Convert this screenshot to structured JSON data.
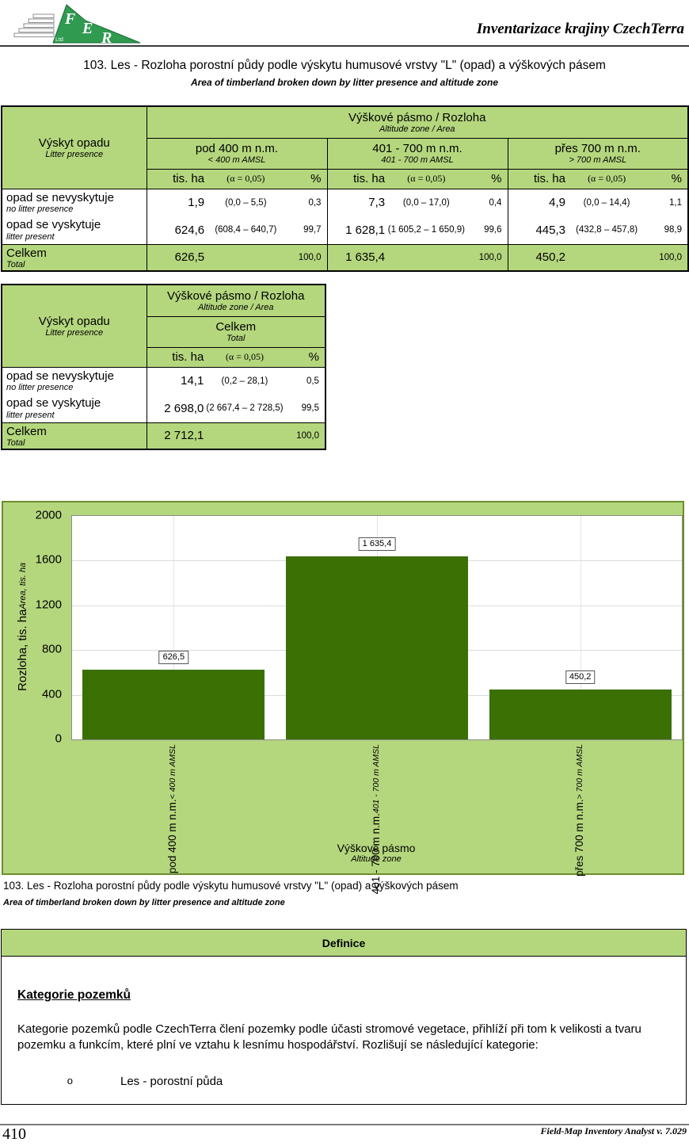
{
  "colors": {
    "green": "#b4d77e",
    "chart_border": "#6d8d2e"
  },
  "header": {
    "brand": "Inventarizace krajiny CzechTerra",
    "logo_alt": "IFER"
  },
  "title": {
    "cs": "103. Les - Rozloha porostní půdy podle výskytu humusové vrstvy \"L\" (opad) a výškových pásem",
    "en": "Area of timberland broken down by litter presence and altitude zone"
  },
  "table1": {
    "row_header": {
      "cs": "Výskyt opadu",
      "en": "Litter presence"
    },
    "group_header": {
      "cs": "Výškové pásmo / Rozloha",
      "en": "Altitude zone / Area"
    },
    "columns": [
      {
        "cs": "pod 400 m n.m.",
        "en": "< 400 m AMSL"
      },
      {
        "cs": "401 - 700 m n.m.",
        "en": "401 - 700 m AMSL"
      },
      {
        "cs": "přes 700 m n.m.",
        "en": "> 700 m AMSL"
      }
    ],
    "units": {
      "area": "tis. ha",
      "alpha": "(α = 0,05)",
      "pct": "%"
    },
    "rows": [
      {
        "label": {
          "cs": "opad se nevyskytuje",
          "en": "no litter presence"
        },
        "cells": [
          {
            "v": "1,9",
            "ci": "(0,0  –  5,5)",
            "pct": "0,3"
          },
          {
            "v": "7,3",
            "ci": "(0,0  –  17,0)",
            "pct": "0,4"
          },
          {
            "v": "4,9",
            "ci": "(0,0  –  14,4)",
            "pct": "1,1"
          }
        ]
      },
      {
        "label": {
          "cs": "opad se vyskytuje",
          "en": "litter present"
        },
        "cells": [
          {
            "v": "624,6",
            "ci": "(608,4 – 640,7)",
            "pct": "99,7"
          },
          {
            "v": "1 628,1",
            "ci": "(1 605,2 – 1 650,9)",
            "pct": "99,6"
          },
          {
            "v": "445,3",
            "ci": "(432,8 – 457,8)",
            "pct": "98,9"
          }
        ]
      }
    ],
    "total": {
      "label": {
        "cs": "Celkem",
        "en": "Total"
      },
      "cells": [
        {
          "v": "626,5",
          "pct": "100,0"
        },
        {
          "v": "1 635,4",
          "pct": "100,0"
        },
        {
          "v": "450,2",
          "pct": "100,0"
        }
      ]
    }
  },
  "table2": {
    "row_header": {
      "cs": "Výskyt opadu",
      "en": "Litter presence"
    },
    "group_header": {
      "cs": "Výškové pásmo / Rozloha",
      "en": "Altitude zone / Area"
    },
    "columns": [
      {
        "cs": "Celkem",
        "en": "Total"
      }
    ],
    "units": {
      "area": "tis. ha",
      "alpha": "(α = 0,05)",
      "pct": "%"
    },
    "rows": [
      {
        "label": {
          "cs": "opad se nevyskytuje",
          "en": "no litter presence"
        },
        "cells": [
          {
            "v": "14,1",
            "ci": "(0,2  –  28,1)",
            "pct": "0,5"
          }
        ]
      },
      {
        "label": {
          "cs": "opad se vyskytuje",
          "en": "litter present"
        },
        "cells": [
          {
            "v": "2 698,0",
            "ci": "(2 667,4 – 2 728,5)",
            "pct": "99,5"
          }
        ]
      }
    ],
    "total": {
      "label": {
        "cs": "Celkem",
        "en": "Total"
      },
      "cells": [
        {
          "v": "2 712,1",
          "pct": "100,0"
        }
      ]
    }
  },
  "chart_data": {
    "type": "bar",
    "categories": [
      "pod 400 m n.m.",
      "401 - 700 m n.m.",
      "přes 700 m n.m."
    ],
    "categories_en": [
      "< 400 m AMSL",
      "401 - 700 m AMSL",
      "> 700 m AMSL"
    ],
    "values": [
      626.5,
      1635.4,
      450.2
    ],
    "value_labels": [
      "626,5",
      "1 635,4",
      "450,2"
    ],
    "ylabel": "Rozloha, tis. ha",
    "ylabel_en": "Area, tis. ha",
    "xlabel": "Výškové pásmo",
    "xlabel_en": "Altitude zone",
    "yticks": [
      0,
      400,
      800,
      1200,
      1600,
      2000
    ],
    "ylim": [
      0,
      2000
    ],
    "grid": true,
    "legend": false,
    "bar_color": "#3a7004",
    "panel_color": "#b4d77e"
  },
  "caption": {
    "cs": "103. Les - Rozloha porostní půdy podle výskytu humusové vrstvy \"L\" (opad) a výškových pásem",
    "en": "Area of timberland broken down by litter presence and altitude zone"
  },
  "definition": {
    "header": "Definice",
    "heading": "Kategorie pozemků",
    "paragraph": "Kategorie pozemků podle CzechTerra člení pozemky podle účasti stromové vegetace, přihlíží při tom k velikosti a tvaru pozemku a funkcím, které plní ve vztahu k lesnímu hospodářství. Rozlišují se následující kategorie:",
    "bullet_marker": "o",
    "bullet": "Les - porostní půda"
  },
  "footer": {
    "page": "410",
    "app": "Field-Map Inventory Analyst v. 7.029"
  }
}
